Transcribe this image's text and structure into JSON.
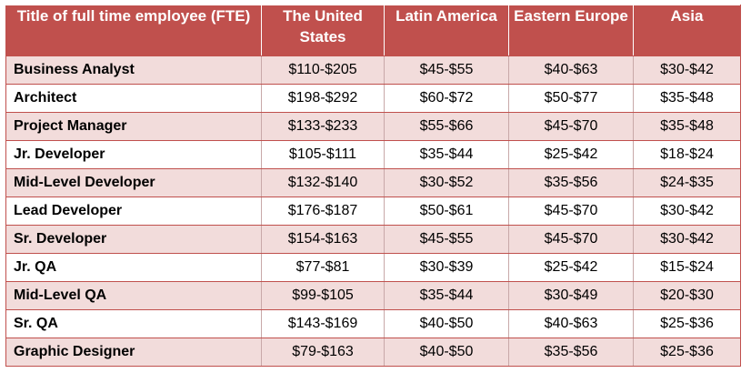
{
  "table": {
    "headers": [
      "Title of full time employee (FTE)",
      "The United States",
      "Latin America",
      "Eastern Europe",
      "Asia"
    ],
    "rows": [
      [
        "Business Analyst",
        "$110-$205",
        "$45-$55",
        "$40-$63",
        "$30-$42"
      ],
      [
        "Architect",
        "$198-$292",
        "$60-$72",
        "$50-$77",
        "$35-$48"
      ],
      [
        "Project Manager",
        "$133-$233",
        "$55-$66",
        "$45-$70",
        "$35-$48"
      ],
      [
        "Jr. Developer",
        "$105-$111",
        "$35-$44",
        "$25-$42",
        "$18-$24"
      ],
      [
        "Mid-Level Developer",
        "$132-$140",
        "$30-$52",
        "$35-$56",
        "$24-$35"
      ],
      [
        "Lead Developer",
        "$176-$187",
        "$50-$61",
        "$45-$70",
        "$30-$42"
      ],
      [
        "Sr. Developer",
        "$154-$163",
        "$45-$55",
        "$45-$70",
        "$30-$42"
      ],
      [
        "Jr. QA",
        "$77-$81",
        "$30-$39",
        "$25-$42",
        "$15-$24"
      ],
      [
        "Mid-Level QA",
        "$99-$105",
        "$35-$44",
        "$30-$49",
        "$20-$30"
      ],
      [
        "Sr. QA",
        "$143-$169",
        "$40-$50",
        "$40-$63",
        "$25-$36"
      ],
      [
        "Graphic Designer",
        "$79-$163",
        "$40-$50",
        "$35-$56",
        "$25-$36"
      ]
    ]
  },
  "colors": {
    "header_bg": "#c0504d",
    "header_text": "#ffffff",
    "row_band": "#f2dcdb",
    "row_plain": "#ffffff"
  }
}
